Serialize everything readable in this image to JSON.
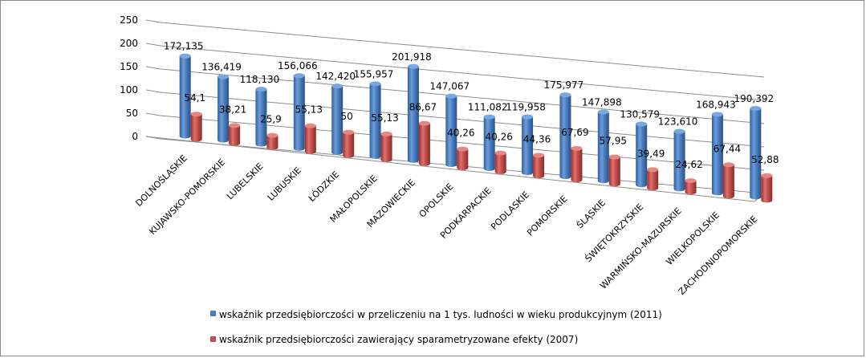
{
  "chart_data": {
    "type": "bar",
    "categories": [
      "DOLNOŚLĄSKIE",
      "KUJAWSKO-POMORSKIE",
      "LUBELSKIE",
      "LUBUSKIE",
      "ŁÓDZKIE",
      "MAŁOPOLSKIE",
      "MAZOWIECKIE",
      "OPOLSKIE",
      "PODKARPACKIE",
      "PODLASKIE",
      "POMORSKIE",
      "ŚLĄSKIE",
      "ŚWIĘTOKRZYSKIE",
      "WARMIŃSKO-MAZURSKIE",
      "WIELKOPOLSKIE",
      "ZACHODNIOPOMORSKIE"
    ],
    "series": [
      {
        "name": "wskaźnik przedsiębiorczości w przeliczeniu na 1 tys. ludności w wieku produkcyjnym (2011)",
        "values": [
          172.135,
          136.419,
          118.13,
          156.066,
          142.42,
          155.957,
          201.918,
          147.067,
          111.082,
          119.958,
          175.977,
          147.898,
          130.579,
          123.61,
          168.943,
          190.392
        ],
        "labels": [
          "172,135",
          "136,419",
          "118,130",
          "156,066",
          "142,420",
          "155,957",
          "201,918",
          "147,067",
          "111,082",
          "119,958",
          "175,977",
          "147,898",
          "130,579",
          "123,610",
          "168,943",
          "190,392"
        ],
        "color": "#4a7ebb"
      },
      {
        "name": "wskaźnik przedsiębiorczości zawierający sparametryzowane efekty (2007)",
        "values": [
          54.1,
          38.21,
          25.9,
          55.13,
          50,
          55.13,
          86.67,
          40.26,
          40.26,
          44.36,
          67.69,
          57.95,
          39.49,
          24.62,
          67.44,
          52.88
        ],
        "labels": [
          "54,1",
          "38,21",
          "25,9",
          "55,13",
          "50",
          "55,13",
          "86,67",
          "40,26",
          "40,26",
          "44,36",
          "67,69",
          "57,95",
          "39,49",
          "24,62",
          "67,44",
          "52,88"
        ],
        "color": "#c0504d"
      }
    ],
    "y_ticks": [
      "0",
      "50",
      "100",
      "150",
      "200",
      "250"
    ],
    "ylim": [
      0,
      250
    ],
    "grid": true,
    "legend_position": "bottom",
    "style": "3d-cylinder"
  }
}
